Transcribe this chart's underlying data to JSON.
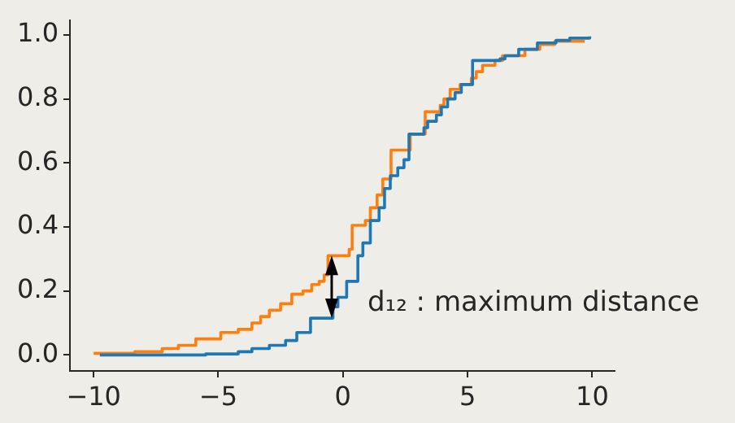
{
  "chart_data": {
    "type": "step",
    "xlim": [
      -10.95,
      10.9
    ],
    "ylim": [
      -0.05,
      1.045
    ],
    "xticks": [
      -10,
      -5,
      0,
      5,
      10
    ],
    "yticks": [
      {
        "value": 0,
        "label": "0.0"
      },
      {
        "value": 0.2,
        "label": "0.2"
      },
      {
        "value": 0.4,
        "label": "0.4"
      },
      {
        "value": 0.6,
        "label": "0.6"
      },
      {
        "value": 0.8,
        "label": "0.8"
      },
      {
        "value": 1,
        "label": "1.0"
      }
    ],
    "grid": false,
    "legend": false,
    "marker": "none",
    "line_style": "solid",
    "annotations": [
      {
        "text": "d₁₂ : maximum distance",
        "x": -0.45,
        "y": 0.31
      }
    ],
    "series": [
      {
        "color": "#1f77b4",
        "x": [
          -9.75,
          -5.5,
          -4.2,
          -3.65,
          -2.95,
          -2.3,
          -1.85,
          -1.3,
          -0.4,
          -0.2,
          0.15,
          0.6,
          0.8,
          1.1,
          1.45,
          1.67,
          1.9,
          2.2,
          2.45,
          2.65,
          3.25,
          3.4,
          3.75,
          3.95,
          4.2,
          4.5,
          4.75,
          5.2,
          6.3,
          6.5,
          7.05,
          7.8,
          8.55,
          9.1,
          9.9
        ],
        "values": [
          0,
          0.003,
          0.01,
          0.02,
          0.03,
          0.045,
          0.07,
          0.115,
          0.15,
          0.18,
          0.23,
          0.31,
          0.35,
          0.42,
          0.46,
          0.52,
          0.56,
          0.585,
          0.61,
          0.69,
          0.71,
          0.73,
          0.75,
          0.775,
          0.8,
          0.82,
          0.845,
          0.92,
          0.925,
          0.935,
          0.955,
          0.975,
          0.983,
          0.99,
          0.995
        ]
      },
      {
        "color": "#ff7f0e",
        "x": [
          -10,
          -8.35,
          -7.25,
          -6.6,
          -5.9,
          -4.9,
          -4.2,
          -3.65,
          -3.3,
          -2.95,
          -2.5,
          -2.05,
          -1.6,
          -1.25,
          -0.95,
          -0.75,
          -0.6,
          0.25,
          0.37,
          0.9,
          1.1,
          1.37,
          1.6,
          1.93,
          2.7,
          3.3,
          3.9,
          4.05,
          4.3,
          4.7,
          5.15,
          5.35,
          5.6,
          6.1,
          6.4,
          7.3,
          7.9,
          8.5,
          9.7
        ],
        "values": [
          0.005,
          0.01,
          0.02,
          0.03,
          0.05,
          0.07,
          0.08,
          0.1,
          0.12,
          0.14,
          0.16,
          0.19,
          0.2,
          0.22,
          0.23,
          0.25,
          0.31,
          0.33,
          0.405,
          0.42,
          0.46,
          0.5,
          0.55,
          0.64,
          0.69,
          0.76,
          0.78,
          0.8,
          0.83,
          0.845,
          0.865,
          0.885,
          0.905,
          0.92,
          0.935,
          0.955,
          0.97,
          0.98,
          0.98
        ]
      }
    ]
  }
}
